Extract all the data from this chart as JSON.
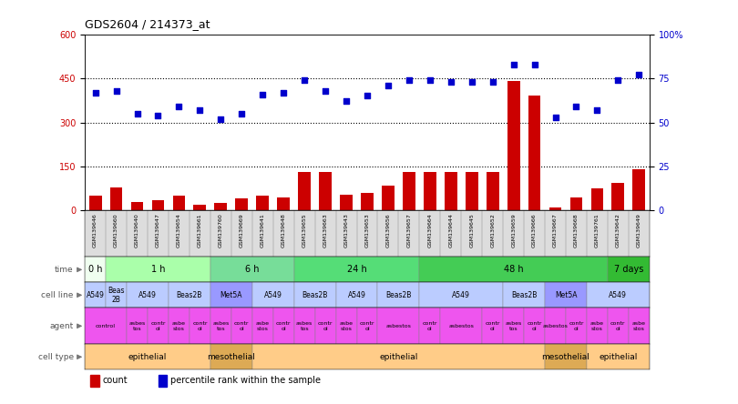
{
  "title": "GDS2604 / 214373_at",
  "samples": [
    "GSM139646",
    "GSM139660",
    "GSM139640",
    "GSM139647",
    "GSM139654",
    "GSM139661",
    "GSM139760",
    "GSM139669",
    "GSM139641",
    "GSM139648",
    "GSM139655",
    "GSM139663",
    "GSM139643",
    "GSM139653",
    "GSM139656",
    "GSM139657",
    "GSM139664",
    "GSM139644",
    "GSM139645",
    "GSM139652",
    "GSM139659",
    "GSM139666",
    "GSM139667",
    "GSM139668",
    "GSM139761",
    "GSM139642",
    "GSM139649"
  ],
  "counts": [
    50,
    80,
    30,
    35,
    50,
    20,
    25,
    40,
    50,
    45,
    130,
    130,
    55,
    60,
    85,
    130,
    130,
    130,
    130,
    130,
    440,
    390,
    10,
    45,
    75,
    95,
    140
  ],
  "percentile_ranks": [
    67,
    68,
    55,
    54,
    59,
    57,
    52,
    55,
    66,
    67,
    74,
    68,
    62,
    65,
    71,
    74,
    74,
    73,
    73,
    73,
    83,
    83,
    53,
    59,
    57,
    74,
    77
  ],
  "ylim_left": [
    0,
    600
  ],
  "ylim_right": [
    0,
    100
  ],
  "yticks_left": [
    0,
    150,
    300,
    450,
    600
  ],
  "yticks_right": [
    0,
    25,
    50,
    75,
    100
  ],
  "ytick_labels_left": [
    "0",
    "150",
    "300",
    "450",
    "600"
  ],
  "ytick_labels_right": [
    "0",
    "25",
    "50",
    "75",
    "100%"
  ],
  "bar_color": "#cc0000",
  "scatter_color": "#0000cc",
  "dotted_lines": [
    150,
    300,
    450
  ],
  "time_row": {
    "label": "time",
    "groups": [
      {
        "text": "0 h",
        "start": 0,
        "end": 1,
        "color": "#f0fff0"
      },
      {
        "text": "1 h",
        "start": 1,
        "end": 6,
        "color": "#aaffaa"
      },
      {
        "text": "6 h",
        "start": 6,
        "end": 10,
        "color": "#77dd99"
      },
      {
        "text": "24 h",
        "start": 10,
        "end": 16,
        "color": "#55dd77"
      },
      {
        "text": "48 h",
        "start": 16,
        "end": 25,
        "color": "#44cc55"
      },
      {
        "text": "7 days",
        "start": 25,
        "end": 27,
        "color": "#33bb33"
      }
    ]
  },
  "cell_line_row": {
    "label": "cell line",
    "groups": [
      {
        "text": "A549",
        "start": 0,
        "end": 1,
        "color": "#bbccff"
      },
      {
        "text": "Beas\n2B",
        "start": 1,
        "end": 2,
        "color": "#bbccff"
      },
      {
        "text": "A549",
        "start": 2,
        "end": 4,
        "color": "#bbccff"
      },
      {
        "text": "Beas2B",
        "start": 4,
        "end": 6,
        "color": "#bbccff"
      },
      {
        "text": "Met5A",
        "start": 6,
        "end": 8,
        "color": "#9999ff"
      },
      {
        "text": "A549",
        "start": 8,
        "end": 10,
        "color": "#bbccff"
      },
      {
        "text": "Beas2B",
        "start": 10,
        "end": 12,
        "color": "#bbccff"
      },
      {
        "text": "A549",
        "start": 12,
        "end": 14,
        "color": "#bbccff"
      },
      {
        "text": "Beas2B",
        "start": 14,
        "end": 16,
        "color": "#bbccff"
      },
      {
        "text": "A549",
        "start": 16,
        "end": 20,
        "color": "#bbccff"
      },
      {
        "text": "Beas2B",
        "start": 20,
        "end": 22,
        "color": "#bbccff"
      },
      {
        "text": "Met5A",
        "start": 22,
        "end": 24,
        "color": "#9999ff"
      },
      {
        "text": "A549",
        "start": 24,
        "end": 27,
        "color": "#bbccff"
      }
    ]
  },
  "agent_row": {
    "label": "agent",
    "groups": [
      {
        "text": "control",
        "start": 0,
        "end": 2,
        "color": "#ee55ee"
      },
      {
        "text": "asbes\ntos",
        "start": 2,
        "end": 3,
        "color": "#ee55ee"
      },
      {
        "text": "contr\nol",
        "start": 3,
        "end": 4,
        "color": "#ee55ee"
      },
      {
        "text": "asbe\nstos",
        "start": 4,
        "end": 5,
        "color": "#ee55ee"
      },
      {
        "text": "contr\nol",
        "start": 5,
        "end": 6,
        "color": "#ee55ee"
      },
      {
        "text": "asbes\ntos",
        "start": 6,
        "end": 7,
        "color": "#ee55ee"
      },
      {
        "text": "contr\nol",
        "start": 7,
        "end": 8,
        "color": "#ee55ee"
      },
      {
        "text": "asbe\nstos",
        "start": 8,
        "end": 9,
        "color": "#ee55ee"
      },
      {
        "text": "contr\nol",
        "start": 9,
        "end": 10,
        "color": "#ee55ee"
      },
      {
        "text": "asbes\ntos",
        "start": 10,
        "end": 11,
        "color": "#ee55ee"
      },
      {
        "text": "contr\nol",
        "start": 11,
        "end": 12,
        "color": "#ee55ee"
      },
      {
        "text": "asbe\nstos",
        "start": 12,
        "end": 13,
        "color": "#ee55ee"
      },
      {
        "text": "contr\nol",
        "start": 13,
        "end": 14,
        "color": "#ee55ee"
      },
      {
        "text": "asbestos",
        "start": 14,
        "end": 16,
        "color": "#ee55ee"
      },
      {
        "text": "contr\nol",
        "start": 16,
        "end": 17,
        "color": "#ee55ee"
      },
      {
        "text": "asbestos",
        "start": 17,
        "end": 19,
        "color": "#ee55ee"
      },
      {
        "text": "contr\nol",
        "start": 19,
        "end": 20,
        "color": "#ee55ee"
      },
      {
        "text": "asbes\ntos",
        "start": 20,
        "end": 21,
        "color": "#ee55ee"
      },
      {
        "text": "contr\nol",
        "start": 21,
        "end": 22,
        "color": "#ee55ee"
      },
      {
        "text": "asbestos",
        "start": 22,
        "end": 23,
        "color": "#ee55ee"
      },
      {
        "text": "contr\nol",
        "start": 23,
        "end": 24,
        "color": "#ee55ee"
      },
      {
        "text": "asbe\nstos",
        "start": 24,
        "end": 25,
        "color": "#ee55ee"
      },
      {
        "text": "contr\nol",
        "start": 25,
        "end": 26,
        "color": "#ee55ee"
      },
      {
        "text": "asbe\nstos",
        "start": 26,
        "end": 27,
        "color": "#ee55ee"
      }
    ]
  },
  "cell_type_row": {
    "label": "cell type",
    "groups": [
      {
        "text": "epithelial",
        "start": 0,
        "end": 6,
        "color": "#ffcc88"
      },
      {
        "text": "mesothelial",
        "start": 6,
        "end": 8,
        "color": "#ddaa55"
      },
      {
        "text": "epithelial",
        "start": 8,
        "end": 22,
        "color": "#ffcc88"
      },
      {
        "text": "mesothelial",
        "start": 22,
        "end": 24,
        "color": "#ddaa55"
      },
      {
        "text": "epithelial",
        "start": 24,
        "end": 27,
        "color": "#ffcc88"
      }
    ]
  },
  "legend_count_color": "#cc0000",
  "legend_percentile_color": "#0000cc",
  "bg_color": "#ffffff"
}
